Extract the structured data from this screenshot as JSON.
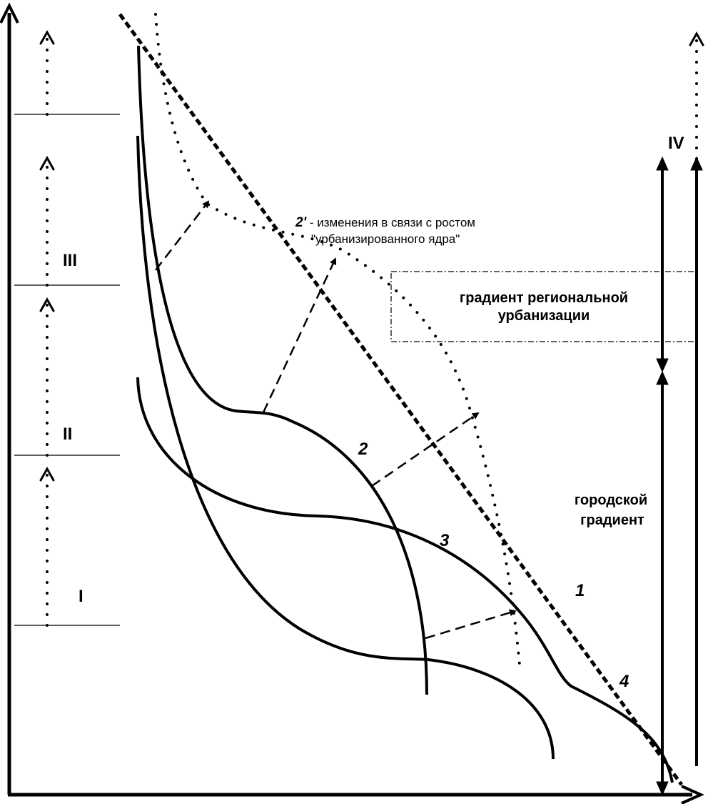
{
  "zones": {
    "I": "I",
    "II": "II",
    "III": "III",
    "IV": "IV"
  },
  "curves": {
    "c1": "1",
    "c2": "2",
    "c3": "3",
    "c4": "4"
  },
  "note": {
    "prefix": "2'",
    "line1": " - изменения в связи с ростом",
    "line2": "\"урбанизированного ядра\""
  },
  "regional": {
    "line1": "градиент региональной",
    "line2": "урбанизации"
  },
  "urban": {
    "line1": "городской",
    "line2": "градиент"
  }
}
